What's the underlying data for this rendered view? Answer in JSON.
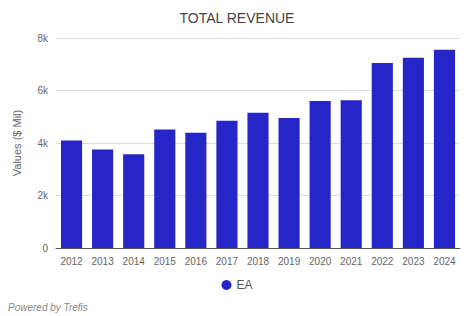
{
  "chart_data": {
    "type": "bar",
    "title": "TOTAL REVENUE",
    "ylabel": "Values ($ Mil)",
    "categories": [
      "2012",
      "2013",
      "2014",
      "2015",
      "2016",
      "2017",
      "2018",
      "2019",
      "2020",
      "2021",
      "2022",
      "2023",
      "2024"
    ],
    "series": [
      {
        "name": "EA",
        "color": "#2626c8",
        "values": [
          4100,
          3750,
          3575,
          4515,
          4395,
          4845,
          5150,
          4950,
          5600,
          5630,
          7050,
          7250,
          7550
        ]
      }
    ],
    "ylim": [
      0,
      8000
    ],
    "yticks": [
      0,
      {
        "value": 2000,
        "label": "2k"
      },
      {
        "value": 4000,
        "label": "4k"
      },
      {
        "value": 6000,
        "label": "6k"
      },
      {
        "value": 8000,
        "label": "8k"
      }
    ],
    "grid": true,
    "legend": "bottom",
    "annotation": "Powered by Trefis"
  }
}
